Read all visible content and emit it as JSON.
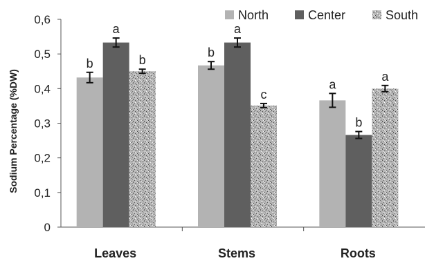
{
  "chart_data": {
    "type": "bar",
    "categories": [
      "Leaves",
      "Stems",
      "Roots"
    ],
    "ylabel": "Sodium Percentage (%DW)",
    "ylim": [
      0,
      0.6
    ],
    "yticks": [
      "0",
      "0,1",
      "0,2",
      "0,3",
      "0,4",
      "0,5",
      "0,6"
    ],
    "grid": false,
    "legend_position": "top-right",
    "series": [
      {
        "name": "North",
        "color": "#b3b3b3",
        "pattern": "solid",
        "values": [
          0.432,
          0.467,
          0.366
        ],
        "errors": [
          0.015,
          0.011,
          0.02
        ],
        "letters": [
          "b",
          "b",
          "a"
        ]
      },
      {
        "name": "Center",
        "color": "#5f5f5f",
        "pattern": "solid",
        "values": [
          0.533,
          0.533,
          0.266
        ],
        "errors": [
          0.013,
          0.013,
          0.01
        ],
        "letters": [
          "a",
          "a",
          "b"
        ]
      },
      {
        "name": "South",
        "color": "#9a9a9a",
        "pattern": "speckled",
        "values": [
          0.45,
          0.351,
          0.4
        ],
        "errors": [
          0.006,
          0.006,
          0.009
        ],
        "letters": [
          "b",
          "c",
          "a"
        ]
      }
    ]
  }
}
